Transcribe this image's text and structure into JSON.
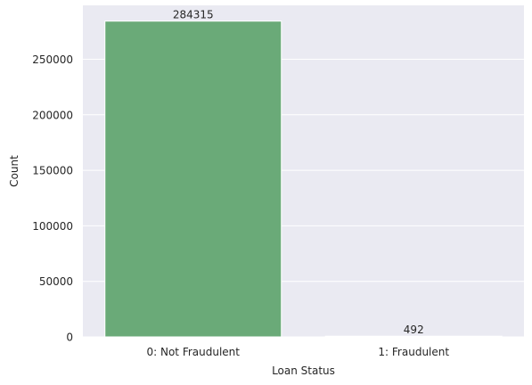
{
  "chart_data": {
    "type": "bar",
    "categories": [
      "0: Not Fraudulent",
      "1: Fraudulent"
    ],
    "values": [
      284315,
      492
    ],
    "data_labels": [
      "284315",
      "492"
    ],
    "title": "",
    "xlabel": "Loan Status",
    "ylabel": "Count",
    "ylim": [
      0,
      298530
    ],
    "yticks": [
      0,
      50000,
      100000,
      150000,
      200000,
      250000
    ],
    "ytick_labels": [
      "0",
      "50000",
      "100000",
      "150000",
      "200000",
      "250000"
    ],
    "grid": true,
    "legend": "none",
    "colors": {
      "background": "#eaeaf2",
      "grid": "#ffffff",
      "bars": [
        "#6aaa78",
        "#6aaa78"
      ],
      "text": "#262626"
    }
  }
}
